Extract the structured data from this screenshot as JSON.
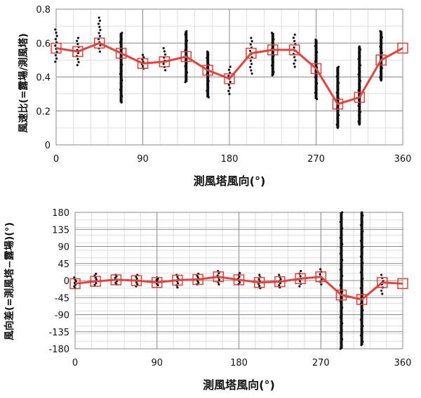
{
  "chart_data": [
    {
      "type": "line",
      "xlabel": "測風塔風向(°)",
      "ylabel": "風速比(=露場/測風塔)",
      "xlim": [
        0,
        360
      ],
      "ylim": [
        0,
        0.8
      ],
      "x_ticks": [
        "0",
        "90",
        "180",
        "270",
        "360"
      ],
      "y_ticks": [
        "0",
        "0.2",
        "0.4",
        "0.6",
        "0.8"
      ],
      "grid": true,
      "series": [
        {
          "color": "#e8403a",
          "marker": "square",
          "x": [
            0,
            22.5,
            45,
            67.5,
            90,
            112.5,
            135,
            157.5,
            180,
            202.5,
            225,
            247.5,
            270,
            292.5,
            315,
            337.5,
            360
          ],
          "y": [
            0.57,
            0.55,
            0.6,
            0.54,
            0.48,
            0.49,
            0.52,
            0.44,
            0.39,
            0.54,
            0.56,
            0.56,
            0.45,
            0.24,
            0.28,
            0.5,
            0.57
          ]
        }
      ],
      "scatter_color": "#111111",
      "scatter": [
        {
          "x": 0,
          "min": 0.49,
          "max": 0.68
        },
        {
          "x": 22.5,
          "min": 0.47,
          "max": 0.63
        },
        {
          "x": 45,
          "min": 0.55,
          "max": 0.75
        },
        {
          "x": 67.5,
          "min": 0.25,
          "max": 0.66
        },
        {
          "x": 90,
          "min": 0.45,
          "max": 0.53
        },
        {
          "x": 112.5,
          "min": 0.44,
          "max": 0.57
        },
        {
          "x": 135,
          "min": 0.37,
          "max": 0.67
        },
        {
          "x": 157.5,
          "min": 0.28,
          "max": 0.55
        },
        {
          "x": 180,
          "min": 0.3,
          "max": 0.46
        },
        {
          "x": 202.5,
          "min": 0.42,
          "max": 0.63
        },
        {
          "x": 225,
          "min": 0.41,
          "max": 0.66
        },
        {
          "x": 247.5,
          "min": 0.46,
          "max": 0.65
        },
        {
          "x": 270,
          "min": 0.27,
          "max": 0.62
        },
        {
          "x": 292.5,
          "min": 0.1,
          "max": 0.46
        },
        {
          "x": 315,
          "min": 0.12,
          "max": 0.58
        },
        {
          "x": 337.5,
          "min": 0.38,
          "max": 0.67
        }
      ]
    },
    {
      "type": "line",
      "xlabel": "測風塔風向(°)",
      "ylabel": "風向差(=測風塔−露場)(°)",
      "xlim": [
        0,
        360
      ],
      "ylim": [
        -180,
        180
      ],
      "x_ticks": [
        "0",
        "90",
        "180",
        "270",
        "360"
      ],
      "y_ticks": [
        "-180",
        "-135",
        "-90",
        "-45",
        "0",
        "45",
        "90",
        "135",
        "180"
      ],
      "grid": true,
      "series": [
        {
          "color": "#e8403a",
          "marker": "square",
          "x": [
            0,
            22.5,
            45,
            67.5,
            90,
            112.5,
            135,
            157.5,
            180,
            202.5,
            225,
            247.5,
            270,
            292.5,
            315,
            337.5,
            360
          ],
          "y": [
            -8,
            -2,
            2,
            0,
            -5,
            1,
            3,
            10,
            2,
            -5,
            -3,
            5,
            10,
            -38,
            -50,
            -5,
            -8
          ]
        }
      ],
      "scatter_color": "#111111",
      "scatter": [
        {
          "x": 0,
          "min": -20,
          "max": 8
        },
        {
          "x": 22.5,
          "min": -12,
          "max": 18
        },
        {
          "x": 45,
          "min": -10,
          "max": 15
        },
        {
          "x": 67.5,
          "min": -15,
          "max": 15
        },
        {
          "x": 90,
          "min": -12,
          "max": 8
        },
        {
          "x": 112.5,
          "min": -18,
          "max": 15
        },
        {
          "x": 135,
          "min": -10,
          "max": 18
        },
        {
          "x": 157.5,
          "min": -10,
          "max": 25
        },
        {
          "x": 180,
          "min": -10,
          "max": 20
        },
        {
          "x": 202.5,
          "min": -20,
          "max": 15
        },
        {
          "x": 225,
          "min": -18,
          "max": 15
        },
        {
          "x": 247.5,
          "min": -15,
          "max": 25
        },
        {
          "x": 270,
          "min": -10,
          "max": 30
        },
        {
          "x": 292.5,
          "min": -180,
          "max": 180
        },
        {
          "x": 315,
          "min": -170,
          "max": 180
        },
        {
          "x": 337.5,
          "min": -35,
          "max": 15
        }
      ]
    }
  ]
}
